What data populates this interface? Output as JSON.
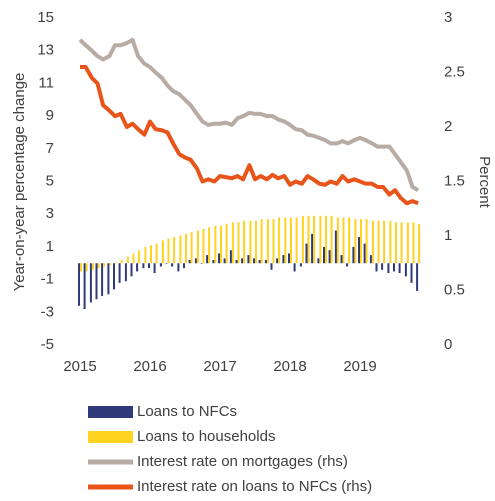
{
  "chart_data": {
    "type": "bar-line",
    "ylabel": "Year-on-year percentage change",
    "y2label": "Percent",
    "x": [
      2015,
      2015.08,
      2015.17,
      2015.25,
      2015.33,
      2015.42,
      2015.5,
      2015.58,
      2015.67,
      2015.75,
      2015.83,
      2015.92,
      2016,
      2016.08,
      2016.17,
      2016.25,
      2016.33,
      2016.42,
      2016.5,
      2016.58,
      2016.67,
      2016.75,
      2016.83,
      2016.92,
      2017,
      2017.08,
      2017.17,
      2017.25,
      2017.33,
      2017.42,
      2017.5,
      2017.58,
      2017.67,
      2017.75,
      2017.83,
      2017.92,
      2018,
      2018.08,
      2018.17,
      2018.25,
      2018.33,
      2018.42,
      2018.5,
      2018.58,
      2018.67,
      2018.75,
      2018.83,
      2018.92,
      2019,
      2019.08,
      2019.17,
      2019.25,
      2019.33,
      2019.42,
      2019.5,
      2019.58,
      2019.67,
      2019.75,
      2019.83
    ],
    "xlim": [
      2015,
      2020
    ],
    "xticks": [
      2015,
      2016,
      2017,
      2018,
      2019
    ],
    "ylim": [
      -5,
      15
    ],
    "yticks": [
      -5,
      -3,
      -1,
      1,
      3,
      5,
      7,
      9,
      11,
      13,
      15
    ],
    "y2lim": [
      0,
      3
    ],
    "y2ticks": [
      0,
      0.5,
      1,
      1.5,
      2,
      2.5,
      3
    ],
    "series": [
      {
        "name": "Loans to NFCs",
        "type": "bar",
        "color": "#2e3a7a",
        "values": [
          -2.6,
          -2.8,
          -2.4,
          -2.2,
          -2.0,
          -1.9,
          -1.6,
          -1.2,
          -1.1,
          -0.8,
          -0.5,
          -0.3,
          -0.3,
          -0.6,
          -0.2,
          0,
          -0.2,
          -0.5,
          -0.3,
          0.2,
          0.3,
          0,
          0.5,
          0.2,
          0.6,
          0.3,
          0.8,
          0.2,
          0.3,
          0.5,
          0.3,
          0.2,
          0.2,
          -0.4,
          0.3,
          0.5,
          0.6,
          -0.5,
          -0.2,
          1.2,
          1.8,
          0.3,
          1.0,
          0.8,
          2.0,
          0.5,
          -0.2,
          1.0,
          1.6,
          1.2,
          0.5,
          -0.5,
          -0.4,
          -0.6,
          -0.5,
          -0.6,
          -0.8,
          -1.2,
          -1.7
        ]
      },
      {
        "name": "Loans to households",
        "type": "bar",
        "color": "#ffd320",
        "values": [
          -0.5,
          -0.5,
          -0.4,
          -0.3,
          -0.2,
          -0.1,
          0,
          0.2,
          0.4,
          0.6,
          0.8,
          1.0,
          1.1,
          1.2,
          1.4,
          1.5,
          1.6,
          1.7,
          1.8,
          1.9,
          2.0,
          2.1,
          2.2,
          2.3,
          2.3,
          2.4,
          2.5,
          2.5,
          2.6,
          2.6,
          2.6,
          2.7,
          2.7,
          2.7,
          2.8,
          2.8,
          2.8,
          2.8,
          2.9,
          2.9,
          2.9,
          2.9,
          2.9,
          2.9,
          2.8,
          2.8,
          2.8,
          2.7,
          2.7,
          2.7,
          2.6,
          2.6,
          2.6,
          2.6,
          2.5,
          2.5,
          2.5,
          2.5,
          2.4
        ]
      },
      {
        "name": "Interest rate on mortgages (rhs)",
        "type": "line",
        "axis": "y2",
        "color": "#b8aba3",
        "values": [
          2.8,
          2.75,
          2.7,
          2.65,
          2.62,
          2.65,
          2.75,
          2.75,
          2.77,
          2.8,
          2.65,
          2.58,
          2.55,
          2.5,
          2.45,
          2.38,
          2.33,
          2.3,
          2.25,
          2.2,
          2.12,
          2.05,
          2.02,
          2.03,
          2.03,
          2.04,
          2.02,
          2.08,
          2.1,
          2.13,
          2.12,
          2.12,
          2.1,
          2.1,
          2.07,
          2.05,
          2.02,
          1.98,
          1.97,
          1.93,
          1.92,
          1.9,
          1.88,
          1.85,
          1.85,
          1.87,
          1.85,
          1.88,
          1.9,
          1.88,
          1.85,
          1.82,
          1.82,
          1.82,
          1.75,
          1.68,
          1.6,
          1.45,
          1.42
        ]
      },
      {
        "name": "Interest rate on loans to NFCs (rhs)",
        "type": "line",
        "axis": "y2",
        "color": "#e8541a",
        "values": [
          2.55,
          2.55,
          2.45,
          2.4,
          2.2,
          2.15,
          2.1,
          2.12,
          2.0,
          2.03,
          1.98,
          1.93,
          2.05,
          1.98,
          1.97,
          1.95,
          1.85,
          1.75,
          1.72,
          1.7,
          1.62,
          1.5,
          1.52,
          1.5,
          1.55,
          1.54,
          1.53,
          1.55,
          1.52,
          1.65,
          1.52,
          1.55,
          1.52,
          1.56,
          1.53,
          1.55,
          1.47,
          1.5,
          1.48,
          1.55,
          1.52,
          1.48,
          1.47,
          1.5,
          1.48,
          1.55,
          1.5,
          1.52,
          1.5,
          1.48,
          1.48,
          1.45,
          1.45,
          1.38,
          1.42,
          1.35,
          1.3,
          1.32,
          1.3
        ]
      }
    ]
  }
}
